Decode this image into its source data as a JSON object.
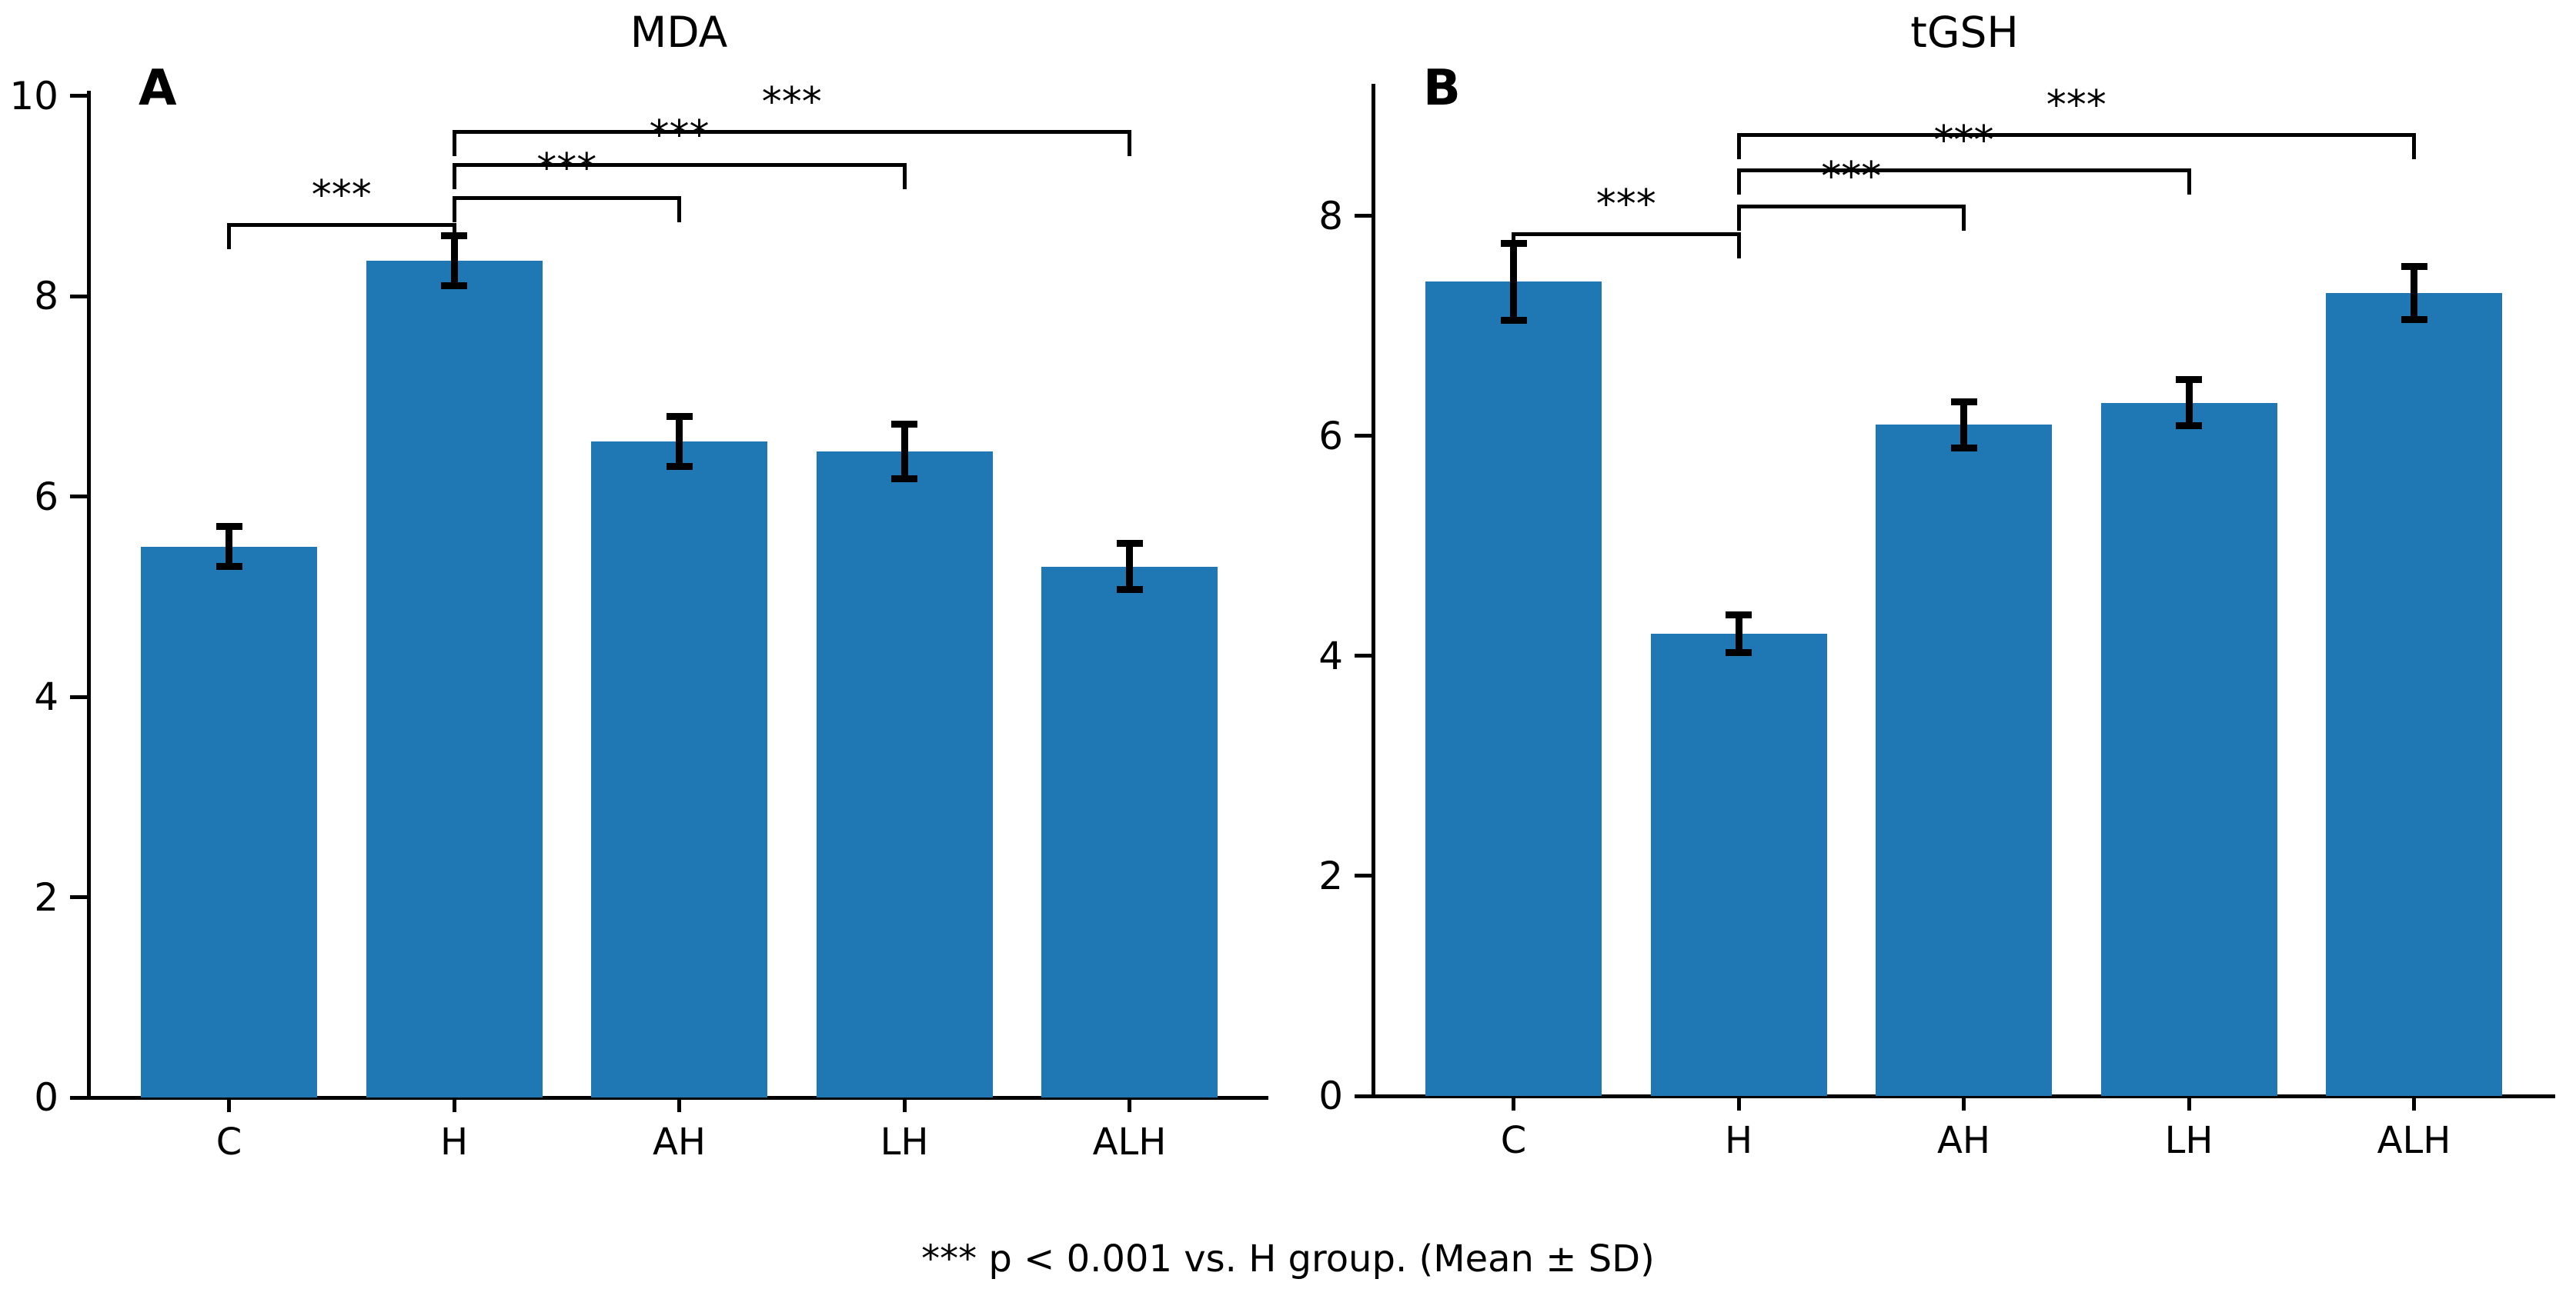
{
  "figure": {
    "footer_note": "*** p < 0.001 vs. H group. (Mean ± SD)",
    "background_color": "#ffffff",
    "bar_color": "#1f77b4",
    "line_color": "#000000"
  },
  "chart_data": [
    {
      "type": "bar",
      "panel_label": "A",
      "title": "MDA",
      "categories": [
        "C",
        "H",
        "AH",
        "LH",
        "ALH"
      ],
      "values": [
        5.5,
        8.35,
        6.55,
        6.45,
        5.3
      ],
      "errors": [
        0.2,
        0.25,
        0.25,
        0.27,
        0.23
      ],
      "error_meaning": "SD",
      "ylim": [
        0,
        10.05
      ],
      "yticks": [
        0,
        2,
        4,
        6,
        8,
        10
      ],
      "grid": false,
      "legend": null,
      "significance_brackets": [
        {
          "from": "C",
          "to": "H",
          "label": "***",
          "level": 8.73
        },
        {
          "from": "H",
          "to": "AH",
          "label": "***",
          "level": 9.0
        },
        {
          "from": "H",
          "to": "LH",
          "label": "***",
          "level": 9.33
        },
        {
          "from": "H",
          "to": "ALH",
          "label": "***",
          "level": 9.66
        }
      ]
    },
    {
      "type": "bar",
      "panel_label": "B",
      "title": "tGSH",
      "categories": [
        "C",
        "H",
        "AH",
        "LH",
        "ALH"
      ],
      "values": [
        7.4,
        4.2,
        6.1,
        6.3,
        7.3
      ],
      "errors": [
        0.35,
        0.17,
        0.21,
        0.21,
        0.24
      ],
      "error_meaning": "SD",
      "ylim": [
        0,
        9.2
      ],
      "yticks": [
        0,
        2,
        4,
        6,
        8
      ],
      "grid": false,
      "legend": null,
      "significance_brackets": [
        {
          "from": "C",
          "to": "H",
          "label": "***",
          "level": 7.85
        },
        {
          "from": "H",
          "to": "AH",
          "label": "***",
          "level": 8.1
        },
        {
          "from": "H",
          "to": "LH",
          "label": "***",
          "level": 8.43
        },
        {
          "from": "H",
          "to": "ALH",
          "label": "***",
          "level": 8.75
        }
      ]
    }
  ]
}
